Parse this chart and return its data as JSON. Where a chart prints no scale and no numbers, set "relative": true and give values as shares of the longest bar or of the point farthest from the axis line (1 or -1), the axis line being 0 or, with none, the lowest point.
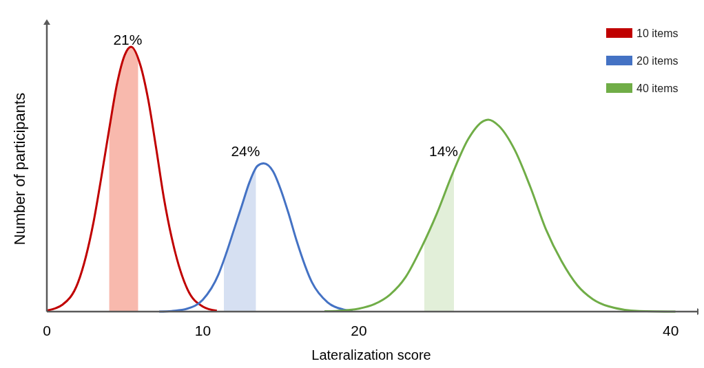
{
  "chart_data": {
    "type": "line",
    "relative": true,
    "xlabel": "Lateralization score",
    "ylabel": "Number of participants",
    "xlim": [
      0,
      41.6
    ],
    "xticks": [
      0,
      10,
      20,
      40
    ],
    "legend": "top right",
    "grid": false,
    "marker": "none",
    "line_style": "solid",
    "series": [
      {
        "type": "area",
        "color": "#f8b9ad",
        "x": [
          4.0,
          4.5,
          5,
          5.4,
          5.85
        ],
        "values": [
          0.69,
          0.86,
          0.97,
          1,
          0.96
        ]
      },
      {
        "type": "area",
        "color": "#d6e0f2",
        "x": [
          11.35,
          12,
          12.5,
          13,
          13.4
        ],
        "values": [
          0.19,
          0.31,
          0.4,
          0.49,
          0.54
        ]
      },
      {
        "type": "area",
        "color": "#e2efd9",
        "x": [
          24.2,
          25,
          26,
          26.1
        ],
        "values": [
          0.26,
          0.37,
          0.52,
          0.54
        ]
      },
      {
        "name": "10 items",
        "color": "#c00000",
        "x": [
          0,
          1,
          2,
          3,
          3.5,
          4,
          4.5,
          5,
          5.4,
          6,
          6.5,
          7,
          7.5,
          8,
          9,
          10,
          10.9
        ],
        "values": [
          0.004,
          0.026,
          0.11,
          0.34,
          0.51,
          0.69,
          0.86,
          0.97,
          1,
          0.93,
          0.8,
          0.62,
          0.43,
          0.28,
          0.086,
          0.019,
          0.003
        ]
      },
      {
        "name": "20 items",
        "color": "#4472c4",
        "x": [
          7.2,
          8,
          9,
          10,
          11,
          11.5,
          12,
          12.5,
          13,
          13.5,
          13.9,
          14.5,
          15,
          15.5,
          16,
          17,
          18,
          19,
          19.6
        ],
        "values": [
          0,
          0.002,
          0.011,
          0.045,
          0.14,
          0.22,
          0.31,
          0.4,
          0.49,
          0.55,
          0.56,
          0.53,
          0.46,
          0.37,
          0.27,
          0.11,
          0.035,
          0.008,
          0.003
        ]
      },
      {
        "name": "40 items",
        "color": "#70ad47",
        "x": [
          17.8,
          19,
          20,
          21,
          22,
          23,
          24,
          25,
          26,
          27,
          28,
          28.3,
          29,
          30,
          31,
          32,
          33,
          34,
          35,
          36,
          38,
          40.3
        ],
        "values": [
          0.001,
          0.004,
          0.011,
          0.028,
          0.064,
          0.13,
          0.24,
          0.37,
          0.52,
          0.65,
          0.72,
          0.725,
          0.7,
          0.61,
          0.47,
          0.31,
          0.19,
          0.1,
          0.047,
          0.02,
          0.002,
          0
        ]
      }
    ],
    "annotations": [
      {
        "text": "21%",
        "x": 5.85,
        "y": 0.96
      },
      {
        "text": "24%",
        "x": 13.4,
        "y": 0.54
      },
      {
        "text": "14%",
        "x": 26.1,
        "y": 0.54
      }
    ]
  }
}
